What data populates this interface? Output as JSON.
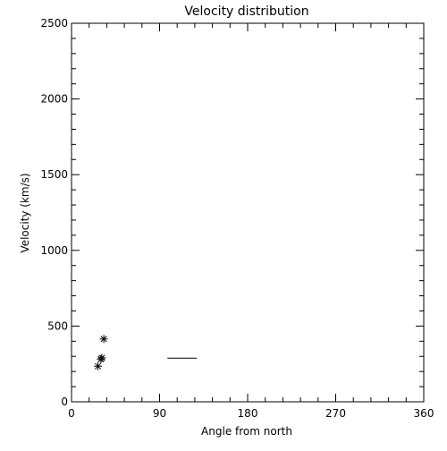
{
  "chart_data": {
    "type": "scatter",
    "title": "Velocity distribution",
    "xlabel": "Angle from north",
    "ylabel": "Velocity (km/s)",
    "xlim": [
      0,
      360
    ],
    "ylim": [
      0,
      2500
    ],
    "xticks": [
      0,
      90,
      180,
      270,
      360
    ],
    "yticks": [
      0,
      500,
      1000,
      1500,
      2000,
      2500
    ],
    "x_minor_step": 18,
    "y_minor_step": 100,
    "grid": false,
    "marker": "asterisk",
    "points": [
      {
        "x": 33,
        "y": 415
      },
      {
        "x": 31,
        "y": 290
      },
      {
        "x": 30,
        "y": 282
      },
      {
        "x": 27,
        "y": 235
      }
    ],
    "segments": [
      {
        "x1": 98,
        "x2": 128,
        "y": 288
      }
    ]
  }
}
